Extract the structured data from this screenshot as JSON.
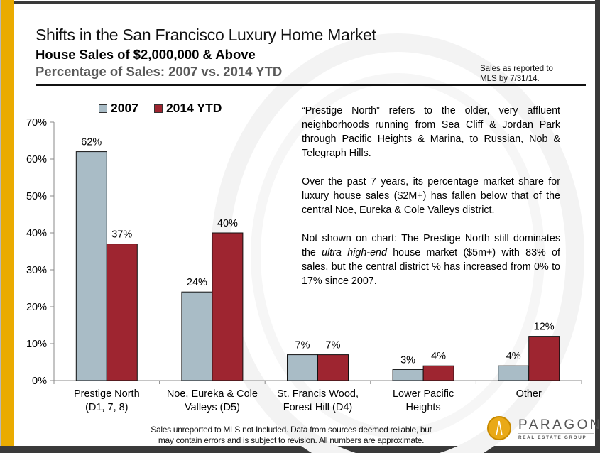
{
  "header": {
    "title": "Shifts in the San Francisco Luxury Home Market",
    "subtitle": "House Sales of $2,000,000 & Above",
    "subtitle2": "Percentage of Sales: 2007 vs. 2014 YTD",
    "note_line1": "Sales as reported to",
    "note_line2": "MLS by 7/31/14."
  },
  "commentary": {
    "p1": "“Prestige North” refers to the older, very affluent neighborhoods running from Sea Cliff & Jordan Park through Pacific Heights & Marina, to Russian, Nob & Telegraph Hills.",
    "p2": "Over the past 7 years, its percentage market share for luxury house sales ($2M+) has fallen below that of the central Noe, Eureka & Cole Valleys district.",
    "p3_before": "Not shown on chart: The Prestige North still dominates the ",
    "p3_italic": "ultra high-end",
    "p3_after": " house market ($5m+) with 83% of sales, but the central district % has increased from 0% to 17% since 2007."
  },
  "footer": {
    "line1": "Sales unreported to MLS not Included. Data from sources deemed reliable, but",
    "line2": "may contain errors and is subject to revision. All numbers are approximate."
  },
  "logo": {
    "name": "PARAGON",
    "tagline": "REAL ESTATE GROUP",
    "icon": "paragon-logo-icon"
  },
  "colors": {
    "frame_accent": "#eaab00",
    "frame_dark": "#3a3a3a",
    "series_2007": "#a9bcc6",
    "series_2014": "#9e2530"
  },
  "chart_data": {
    "type": "bar",
    "title": "Percentage of Sales: 2007 vs. 2014 YTD",
    "xlabel": "",
    "ylabel": "",
    "ylim": [
      0,
      70
    ],
    "yticks": [
      0,
      10,
      20,
      30,
      40,
      50,
      60,
      70
    ],
    "ytick_labels": [
      "0%",
      "10%",
      "20%",
      "30%",
      "40%",
      "50%",
      "60%",
      "70%"
    ],
    "grid": false,
    "legend_position": "top-left",
    "categories": [
      [
        "Prestige North",
        "(D1, 7, 8)"
      ],
      [
        "Noe, Eureka & Cole",
        "Valleys (D5)"
      ],
      [
        "St. Francis Wood,",
        "Forest Hill (D4)"
      ],
      [
        "Lower Pacific",
        "Heights"
      ],
      [
        "Other"
      ]
    ],
    "series": [
      {
        "name": "2007",
        "color": "#a9bcc6",
        "values": [
          62,
          24,
          7,
          3,
          4
        ],
        "labels": [
          "62%",
          "24%",
          "7%",
          "3%",
          "4%"
        ]
      },
      {
        "name": "2014 YTD",
        "color": "#9e2530",
        "values": [
          37,
          40,
          7,
          4,
          12
        ],
        "labels": [
          "37%",
          "40%",
          "7%",
          "4%",
          "12%"
        ]
      }
    ]
  }
}
